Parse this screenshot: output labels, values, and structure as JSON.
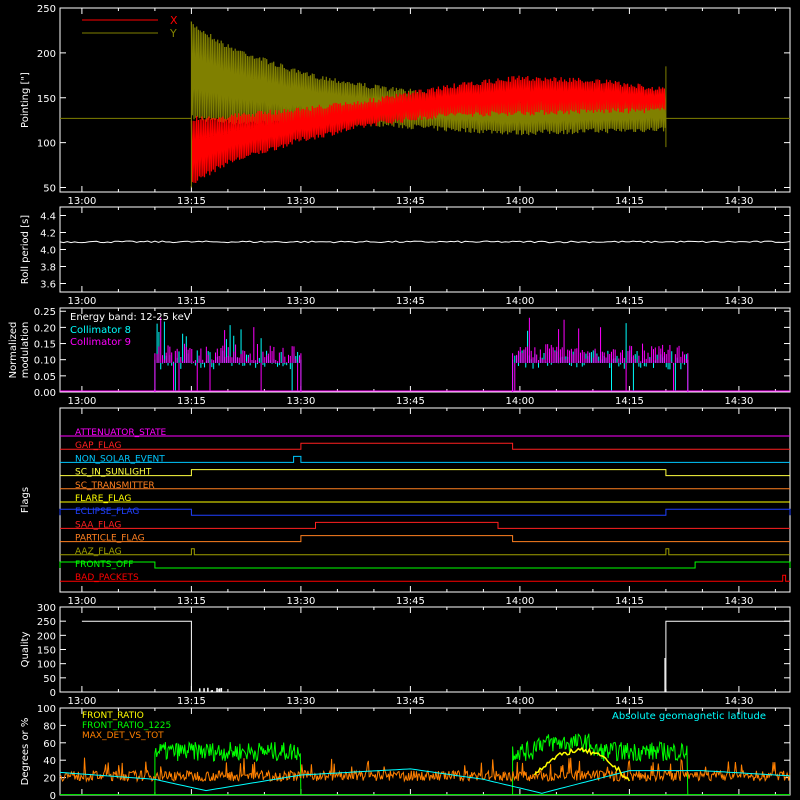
{
  "chart_data": [
    {
      "type": "line",
      "ylabel": "Pointing [\"]",
      "ylim": [
        45,
        250
      ],
      "yticks": [
        50,
        100,
        150,
        200,
        250
      ],
      "x_ticks": [
        "13:00",
        "13:15",
        "13:30",
        "13:45",
        "14:00",
        "14:15",
        "14:30"
      ],
      "legend": "top-left",
      "series": [
        {
          "name": "X",
          "color": "#ff0000",
          "baseline": 127,
          "envelope_time": [
            "13:15",
            "13:20",
            "13:30",
            "13:40",
            "13:50",
            "14:00",
            "14:10",
            "14:20"
          ],
          "envelope_upper": [
            130,
            132,
            140,
            150,
            165,
            175,
            172,
            162
          ],
          "envelope_lower": [
            52,
            75,
            100,
            118,
            128,
            130,
            132,
            133
          ]
        },
        {
          "name": "Y",
          "color": "#808000",
          "baseline": 127,
          "envelope_time": [
            "13:15",
            "13:20",
            "13:30",
            "13:40",
            "13:50",
            "14:00",
            "14:10",
            "14:20"
          ],
          "envelope_upper": [
            235,
            210,
            180,
            165,
            155,
            150,
            152,
            155
          ],
          "envelope_lower": [
            125,
            120,
            118,
            118,
            112,
            108,
            110,
            112
          ]
        }
      ]
    },
    {
      "type": "line",
      "ylabel": "Roll period [s]",
      "ylim": [
        3.5,
        4.5
      ],
      "yticks": [
        "3.6",
        "3.8",
        "4.0",
        "4.2",
        "4.4"
      ],
      "x_ticks": [
        "13:00",
        "13:15",
        "13:30",
        "13:45",
        "14:00",
        "14:15",
        "14:30"
      ],
      "series": [
        {
          "color": "#ffffff",
          "value": 4.09
        }
      ]
    },
    {
      "type": "bar",
      "ylabel": "Normalized modulation",
      "ylim": [
        0,
        0.26
      ],
      "yticks": [
        "0.00",
        "0.05",
        "0.10",
        "0.15",
        "0.20",
        "0.25"
      ],
      "x_ticks": [
        "13:00",
        "13:15",
        "13:30",
        "13:45",
        "14:00",
        "14:15",
        "14:30"
      ],
      "annotation": "Energy band: 12-25 keV",
      "series": [
        {
          "name": "Collimator 8",
          "color": "#00ffff",
          "intervals": [
            [
              "13:10",
              "13:30"
            ],
            [
              "13:59",
              "14:23"
            ]
          ],
          "typical": 0.1
        },
        {
          "name": "Collimator 9",
          "color": "#ff00ff",
          "intervals": [
            [
              "13:10",
              "13:30"
            ],
            [
              "13:59",
              "14:23"
            ]
          ],
          "typical": 0.12
        }
      ]
    },
    {
      "type": "timeline",
      "ylabel": "Flags",
      "x_ticks": [
        "13:00",
        "13:15",
        "13:30",
        "13:45",
        "14:00",
        "14:15",
        "14:30"
      ],
      "flags": [
        {
          "name": "ATTENUATOR_STATE",
          "color": "#ff00ff",
          "high": []
        },
        {
          "name": "GAP_FLAG",
          "color": "#ff2020",
          "high": [
            [
              "13:30",
              "13:59"
            ]
          ]
        },
        {
          "name": "NON_SOLAR_EVENT",
          "color": "#00c8ff",
          "high": [
            [
              "13:29",
              "13:30"
            ]
          ]
        },
        {
          "name": "SC_IN_SUNLIGHT",
          "color": "#ffff40",
          "high": [
            [
              "13:15",
              "14:20"
            ]
          ]
        },
        {
          "name": "SC_TRANSMITTER",
          "color": "#ff8020",
          "high": []
        },
        {
          "name": "FLARE_FLAG",
          "color": "#ffff00",
          "high": []
        },
        {
          "name": "ECLIPSE_FLAG",
          "color": "#2040ff",
          "high": [
            [
              "12:57",
              "13:15"
            ],
            [
              "14:20",
              "14:37"
            ]
          ]
        },
        {
          "name": "SAA_FLAG",
          "color": "#ff2020",
          "high": [
            [
              "13:32",
              "13:57"
            ]
          ]
        },
        {
          "name": "PARTICLE_FLAG",
          "color": "#ff8020",
          "high": [
            [
              "13:30",
              "13:59"
            ]
          ]
        },
        {
          "name": "AAZ_FLAG",
          "color": "#a0a000",
          "high": [
            [
              "13:15",
              "13:15"
            ],
            [
              "14:20",
              "14:20"
            ]
          ]
        },
        {
          "name": "FRONTS_OFF",
          "color": "#00ff00",
          "high": [
            [
              "12:57",
              "13:10"
            ],
            [
              "14:24",
              "14:37"
            ]
          ]
        },
        {
          "name": "BAD_PACKETS",
          "color": "#ff0000",
          "high": [
            [
              "14:36",
              "14:36"
            ]
          ]
        }
      ]
    },
    {
      "type": "line",
      "ylabel": "Quality",
      "ylim": [
        0,
        300
      ],
      "yticks": [
        0,
        50,
        100,
        150,
        200,
        250,
        300
      ],
      "x_ticks": [
        "13:00",
        "13:15",
        "13:30",
        "13:45",
        "14:00",
        "14:15",
        "14:30"
      ],
      "series": [
        {
          "color": "#ffffff",
          "x": [
            "13:00",
            "13:15",
            "13:15",
            "14:20",
            "14:20",
            "14:37"
          ],
          "y": [
            250,
            250,
            0,
            0,
            250,
            250
          ]
        }
      ]
    },
    {
      "type": "line",
      "ylabel": "Degrees or %",
      "ylim": [
        0,
        100
      ],
      "yticks": [
        0,
        20,
        40,
        60,
        80,
        100
      ],
      "legend": "top-left",
      "series": [
        {
          "name": "FRONT_RATIO",
          "color": "#ffff00"
        },
        {
          "name": "FRONT_RATIO_1225",
          "color": "#00ff00",
          "intervals": [
            [
              "13:10",
              "13:30"
            ],
            [
              "13:59",
              "14:23"
            ]
          ],
          "typical": 50
        },
        {
          "name": "MAX_DET_VS_TOT",
          "color": "#ff8000",
          "typical": 22
        },
        {
          "name": "Absolute geomagnetic latitude",
          "color": "#00ffff",
          "x": [
            "12:57",
            "13:10",
            "13:17",
            "13:30",
            "13:45",
            "13:55",
            "14:03",
            "14:15",
            "14:25",
            "14:37"
          ],
          "y": [
            26,
            18,
            5,
            23,
            30,
            18,
            2,
            28,
            28,
            22
          ]
        }
      ]
    }
  ]
}
